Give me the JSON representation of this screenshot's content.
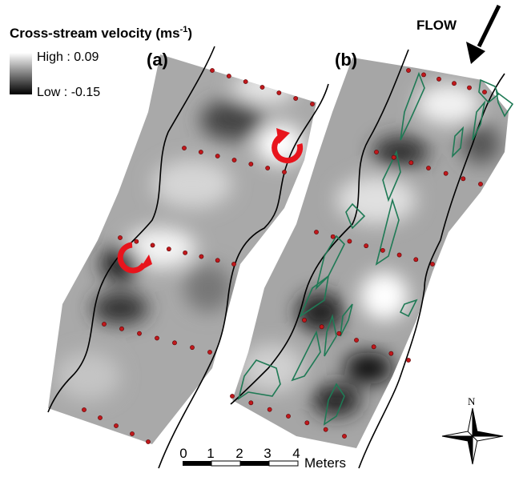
{
  "title": {
    "text": "Cross-stream velocity (ms",
    "superscript": "-1",
    "close": ")"
  },
  "legend": {
    "high": "High : 0.09",
    "low": "Low : -0.15"
  },
  "panels": [
    "(a)",
    "(b)"
  ],
  "flow_label": "FLOW",
  "scale_bar": {
    "labels": [
      "0",
      "1",
      "2",
      "3",
      "4"
    ],
    "unit": "Meters"
  },
  "north_label": "N"
}
